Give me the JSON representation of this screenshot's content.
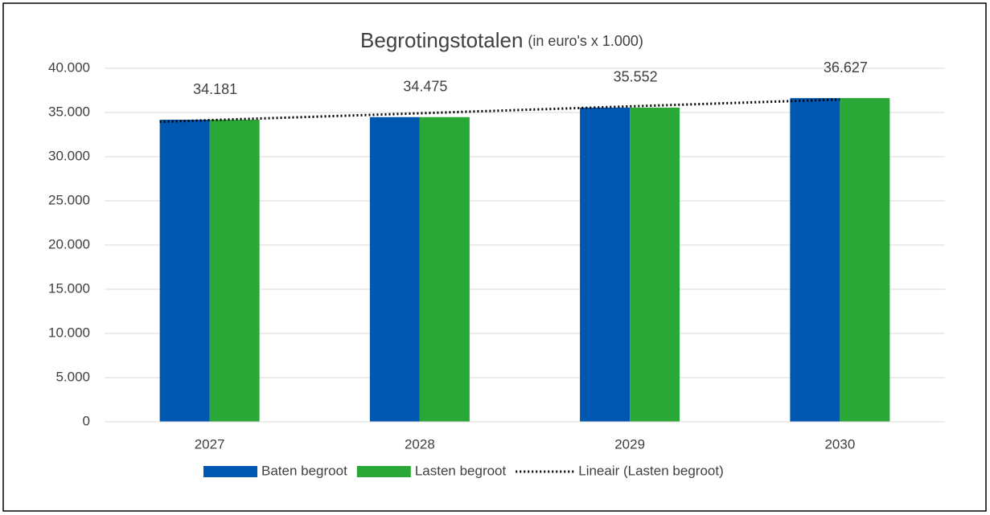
{
  "chart_data": {
    "type": "bar",
    "title": "Begrotingstotalen",
    "subtitle": "(in euro's x 1.000)",
    "categories": [
      "2027",
      "2028",
      "2029",
      "2030"
    ],
    "series": [
      {
        "name": "Baten begroot",
        "color": "#0057b0",
        "values": [
          34181,
          34475,
          35552,
          36627
        ],
        "value_labels": [
          "34.181",
          "34.475",
          "35.552",
          "36.627"
        ]
      },
      {
        "name": "Lasten begroot",
        "color": "#2aa837",
        "values": [
          34181,
          34475,
          35552,
          36627
        ]
      }
    ],
    "trendline": {
      "name": "Lineair (Lasten begroot)",
      "series": 1,
      "color": "#000000"
    },
    "ylim": [
      0,
      40000
    ],
    "yticks": [
      0,
      {
        "value": 5000,
        "label": "5.000"
      },
      {
        "value": 10000,
        "label": "10.000"
      },
      {
        "value": 15000,
        "label": "15.000"
      },
      {
        "value": 20000,
        "label": "20.000"
      },
      {
        "value": 25000,
        "label": "25.000"
      },
      {
        "value": 30000,
        "label": "30.000"
      },
      {
        "value": 35000,
        "label": "35.000"
      },
      {
        "value": 40000,
        "label": "40.000"
      }
    ],
    "grid": true,
    "legend": "bottom"
  }
}
